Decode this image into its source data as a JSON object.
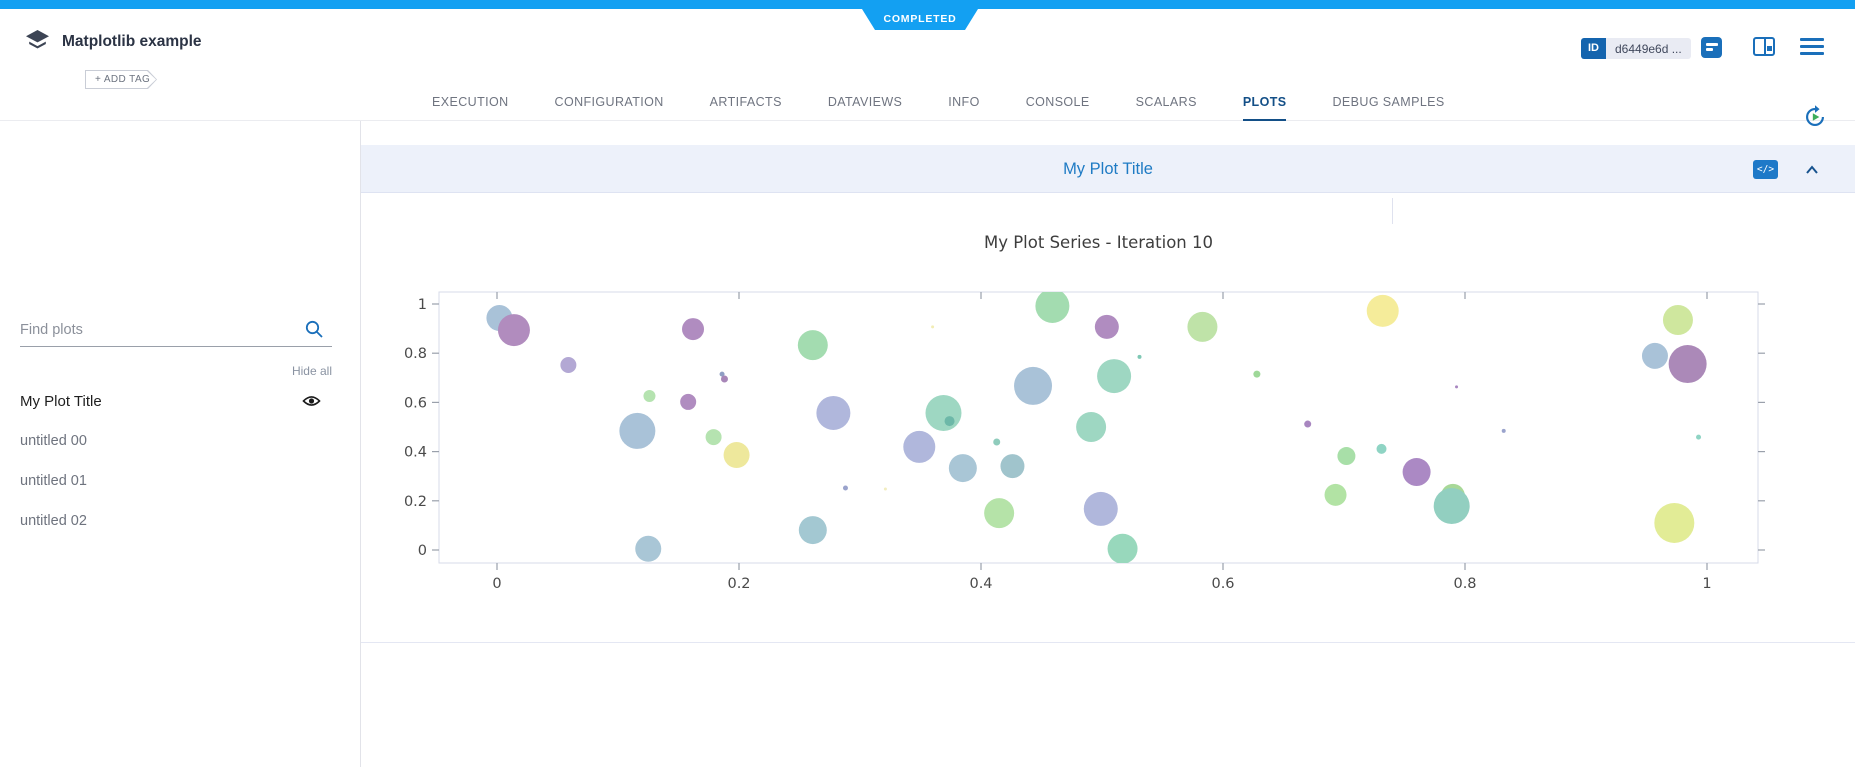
{
  "status_banner": {
    "label": "COMPLETED"
  },
  "header": {
    "title": "Matplotlib example",
    "add_tag_label": "+ ADD TAG",
    "id_label": "ID",
    "id_value": "d6449e6d ..."
  },
  "tabs": {
    "items": [
      "EXECUTION",
      "CONFIGURATION",
      "ARTIFACTS",
      "DATAVIEWS",
      "INFO",
      "CONSOLE",
      "SCALARS",
      "PLOTS",
      "DEBUG SAMPLES"
    ],
    "active": "PLOTS"
  },
  "sidebar": {
    "search_placeholder": "Find plots",
    "hide_all_label": "Hide all",
    "items": [
      {
        "label": "My Plot Title",
        "active": true,
        "visible": true
      },
      {
        "label": "untitled 00",
        "active": false,
        "visible": false
      },
      {
        "label": "untitled 01",
        "active": false,
        "visible": false
      },
      {
        "label": "untitled 02",
        "active": false,
        "visible": false
      }
    ]
  },
  "plot_panel": {
    "title": "My Plot Title",
    "code_icon_label": "</>"
  },
  "colors": {
    "status_blue": "#13a0f2",
    "brand_blue": "#1a6fba",
    "active_tab_blue": "#134f87",
    "plot_title_blue": "#1f7bc4"
  },
  "chart_data": {
    "type": "scatter",
    "title": "My Plot Series - Iteration 10",
    "series_name": "My Plot Series",
    "iteration": 10,
    "xlim": [
      -0.05,
      1.04
    ],
    "ylim": [
      -0.05,
      1.05
    ],
    "x_tick_values": [
      0,
      0.2,
      0.4,
      0.6,
      0.8,
      1
    ],
    "x_tick_labels": [
      "0",
      "0.2",
      "0.4",
      "0.6",
      "0.8",
      "1"
    ],
    "y_tick_values": [
      0,
      0.2,
      0.4,
      0.6,
      0.8,
      1
    ],
    "y_tick_labels": [
      "0",
      "0.2",
      "0.4",
      "0.6",
      "0.8",
      "1"
    ],
    "grid": false,
    "legend": false,
    "points": [
      {
        "x": 0.002,
        "y": 0.943,
        "r": 13,
        "c": "#a9c2d8"
      },
      {
        "x": 0.014,
        "y": 0.894,
        "r": 16,
        "c": "#b18cbe"
      },
      {
        "x": 0.059,
        "y": 0.752,
        "r": 8,
        "c": "#b3a8d4"
      },
      {
        "x": 0.126,
        "y": 0.626,
        "r": 6,
        "c": "#b5e3b0"
      },
      {
        "x": 0.116,
        "y": 0.484,
        "r": 18,
        "c": "#a9c2d8"
      },
      {
        "x": 0.158,
        "y": 0.602,
        "r": 8,
        "c": "#b08cc0"
      },
      {
        "x": 0.162,
        "y": 0.898,
        "r": 11,
        "c": "#b08cc0"
      },
      {
        "x": 0.186,
        "y": 0.715,
        "r": 2.5,
        "c": "#8f9ec4"
      },
      {
        "x": 0.188,
        "y": 0.695,
        "r": 3.5,
        "c": "#a886b8"
      },
      {
        "x": 0.261,
        "y": 0.833,
        "r": 15,
        "c": "#a3dcb0"
      },
      {
        "x": 0.278,
        "y": 0.557,
        "r": 17,
        "c": "#b0b7dc"
      },
      {
        "x": 0.179,
        "y": 0.459,
        "r": 8,
        "c": "#b5e3b0"
      },
      {
        "x": 0.198,
        "y": 0.386,
        "r": 13,
        "c": "#eee89c"
      },
      {
        "x": 0.288,
        "y": 0.252,
        "r": 2.5,
        "c": "#9aa3cc"
      },
      {
        "x": 0.261,
        "y": 0.081,
        "r": 14,
        "c": "#a3c8d2"
      },
      {
        "x": 0.125,
        "y": 0.005,
        "r": 13,
        "c": "#a9c6d6"
      },
      {
        "x": 0.459,
        "y": 0.992,
        "r": 17,
        "c": "#a3dcb0"
      },
      {
        "x": 0.504,
        "y": 0.907,
        "r": 12,
        "c": "#b08cc0"
      },
      {
        "x": 0.583,
        "y": 0.907,
        "r": 15,
        "c": "#bfe3a8"
      },
      {
        "x": 0.531,
        "y": 0.785,
        "r": 2,
        "c": "#7ec8b4"
      },
      {
        "x": 0.51,
        "y": 0.707,
        "r": 17,
        "c": "#9ed7c2"
      },
      {
        "x": 0.443,
        "y": 0.667,
        "r": 19,
        "c": "#a9c2d8"
      },
      {
        "x": 0.369,
        "y": 0.557,
        "r": 18,
        "c": "#9ed7c2"
      },
      {
        "x": 0.374,
        "y": 0.524,
        "r": 5,
        "c": "#6db8a8"
      },
      {
        "x": 0.349,
        "y": 0.419,
        "r": 16,
        "c": "#b0b7dc"
      },
      {
        "x": 0.385,
        "y": 0.333,
        "r": 14,
        "c": "#a9c6d6"
      },
      {
        "x": 0.413,
        "y": 0.439,
        "r": 3.5,
        "c": "#8fccbc"
      },
      {
        "x": 0.426,
        "y": 0.341,
        "r": 12,
        "c": "#a0c4cc"
      },
      {
        "x": 0.491,
        "y": 0.5,
        "r": 15,
        "c": "#9ed7c2"
      },
      {
        "x": 0.415,
        "y": 0.15,
        "r": 15,
        "c": "#b5e3a8"
      },
      {
        "x": 0.499,
        "y": 0.167,
        "r": 17,
        "c": "#b0b7dc"
      },
      {
        "x": 0.517,
        "y": 0.005,
        "r": 15,
        "c": "#98d8bc"
      },
      {
        "x": 0.628,
        "y": 0.715,
        "r": 3.5,
        "c": "#9ed898"
      },
      {
        "x": 0.36,
        "y": 0.907,
        "r": 1.5,
        "c": "#f2edb4"
      },
      {
        "x": 0.321,
        "y": 0.248,
        "r": 1.5,
        "c": "#f2edc0"
      },
      {
        "x": 0.67,
        "y": 0.512,
        "r": 3.5,
        "c": "#a886c0"
      },
      {
        "x": 0.732,
        "y": 0.972,
        "r": 16,
        "c": "#f5ec9a"
      },
      {
        "x": 0.976,
        "y": 0.935,
        "r": 15,
        "c": "#cfe79e"
      },
      {
        "x": 0.957,
        "y": 0.789,
        "r": 13,
        "c": "#a9c2d8"
      },
      {
        "x": 0.984,
        "y": 0.756,
        "r": 19,
        "c": "#ab89b8"
      },
      {
        "x": 0.793,
        "y": 0.663,
        "r": 1.5,
        "c": "#a886c0"
      },
      {
        "x": 0.702,
        "y": 0.382,
        "r": 9,
        "c": "#a8dfa8"
      },
      {
        "x": 0.731,
        "y": 0.411,
        "r": 5,
        "c": "#8fd4c4"
      },
      {
        "x": 0.76,
        "y": 0.317,
        "r": 14,
        "c": "#ab89c4"
      },
      {
        "x": 0.693,
        "y": 0.224,
        "r": 11,
        "c": "#b2e3a4"
      },
      {
        "x": 0.79,
        "y": 0.22,
        "r": 12,
        "c": "#a8d898"
      },
      {
        "x": 0.789,
        "y": 0.179,
        "r": 18,
        "c": "#92cfc0"
      },
      {
        "x": 0.832,
        "y": 0.484,
        "r": 2,
        "c": "#9aa3cc"
      },
      {
        "x": 0.993,
        "y": 0.459,
        "r": 2.5,
        "c": "#8fd4c4"
      },
      {
        "x": 0.973,
        "y": 0.11,
        "r": 20,
        "c": "#e2ec96"
      }
    ]
  }
}
